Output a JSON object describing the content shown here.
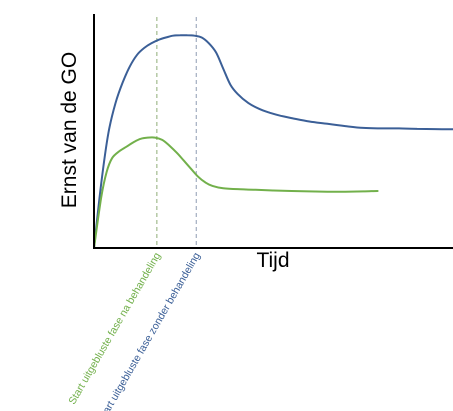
{
  "chart_data": {
    "type": "line",
    "xlabel": "Tijd",
    "ylabel": "Ernst van de GO",
    "xlim": [
      0,
      100
    ],
    "ylim": [
      0,
      100
    ],
    "grid": false,
    "legend": "none",
    "series": [
      {
        "color": "#3b5f97",
        "x": [
          0,
          2,
          4,
          6,
          8,
          10,
          12,
          14,
          16,
          18,
          20,
          22,
          24,
          26,
          28,
          30,
          32,
          34,
          36,
          38,
          40,
          43,
          46,
          49,
          52,
          55,
          60,
          65,
          70,
          75,
          80,
          85,
          90,
          95,
          100
        ],
        "y": [
          0,
          28,
          50,
          63,
          72,
          79,
          84,
          87,
          89,
          90.5,
          91.5,
          92.3,
          92.5,
          92.5,
          92.3,
          91.5,
          89,
          85,
          78,
          71,
          67,
          63,
          60.5,
          58.8,
          57.5,
          56.5,
          55,
          54,
          53,
          52.2,
          52,
          52,
          51.8,
          51.7,
          51.6
        ]
      },
      {
        "color": "#72b04b",
        "x": [
          0,
          2,
          3.5,
          5,
          7,
          9,
          11,
          13,
          15,
          17,
          19,
          21,
          23,
          25,
          27,
          29,
          31,
          33,
          36,
          40,
          45,
          50,
          55,
          60,
          65,
          70,
          75,
          79
        ],
        "y": [
          0,
          22,
          33,
          39,
          42,
          44,
          46,
          47.5,
          48,
          48,
          47,
          44.5,
          41.5,
          38,
          34.5,
          31,
          28.5,
          27,
          26,
          25.6,
          25.3,
          25,
          24.8,
          24.6,
          24.5,
          24.5,
          24.6,
          24.8
        ]
      }
    ],
    "markers": [
      {
        "x": 17.5,
        "label": "Start uitgebluste fase na behandeling",
        "color": "#72b04b",
        "line_color": "#a9c097"
      },
      {
        "x": 28.5,
        "label": "Start uitgebluste fase zonder behandeling",
        "color": "#3b5f97",
        "line_color": "#a9b3c5"
      }
    ]
  }
}
